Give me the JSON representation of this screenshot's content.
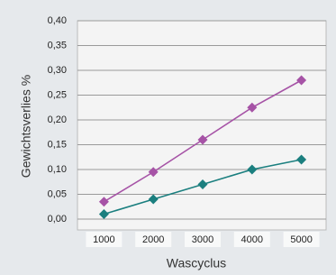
{
  "chart_data": {
    "type": "line",
    "y_label": "Gewichtsverlies %",
    "x_label": "Wascyclus",
    "categories": [
      "1000",
      "2000",
      "3000",
      "4000",
      "5000"
    ],
    "series": [
      {
        "color": "#a653a6",
        "values": [
          0.035,
          0.095,
          0.16,
          0.225,
          0.28
        ]
      },
      {
        "color": "#1b7f7f",
        "values": [
          0.01,
          0.04,
          0.07,
          0.1,
          0.12
        ]
      }
    ],
    "ylim": [
      0,
      0.4
    ],
    "yticks": [
      {
        "value": 0,
        "label": "0,00"
      },
      {
        "value": 0.05,
        "label": "0,05"
      },
      {
        "value": 0.1,
        "label": "0,10"
      },
      {
        "value": 0.15,
        "label": "0,15"
      },
      {
        "value": 0.2,
        "label": "0,20"
      },
      {
        "value": 0.25,
        "label": "0,25"
      },
      {
        "value": 0.3,
        "label": "0,30"
      },
      {
        "value": 0.35,
        "label": "0,35"
      },
      {
        "value": 0.4,
        "label": "0,40"
      }
    ],
    "grid": true
  }
}
